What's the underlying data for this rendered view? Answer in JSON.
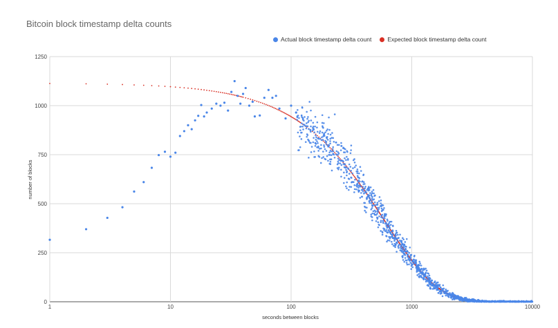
{
  "chart_data": {
    "type": "scatter",
    "title": "Bitcoin block timestamp delta counts",
    "xlabel": "seconds between blocks",
    "ylabel": "number of blocks",
    "x_scale": "log",
    "xlim": [
      1,
      10000
    ],
    "ylim": [
      0,
      1250
    ],
    "x_ticks": [
      "1",
      "10",
      "100",
      "1000",
      "10000"
    ],
    "y_ticks": [
      "0",
      "250",
      "500",
      "750",
      "1000",
      "1250"
    ],
    "grid": true,
    "legend_position": "top",
    "series": [
      {
        "name": "Actual block timestamp delta count",
        "color": "#4a86e8",
        "points": [
          [
            1,
            316
          ],
          [
            2,
            370
          ],
          [
            3,
            428
          ],
          [
            4,
            482
          ],
          [
            5,
            562
          ],
          [
            6,
            610
          ],
          [
            7,
            683
          ],
          [
            8,
            748
          ],
          [
            9,
            765
          ],
          [
            10,
            740
          ],
          [
            11,
            760
          ],
          [
            12,
            845
          ],
          [
            13,
            870
          ],
          [
            14,
            900
          ],
          [
            15,
            880
          ],
          [
            16,
            925
          ],
          [
            17,
            948
          ],
          [
            18,
            1003
          ],
          [
            19,
            945
          ],
          [
            20,
            965
          ],
          [
            22,
            985
          ],
          [
            24,
            1010
          ],
          [
            26,
            1000
          ],
          [
            28,
            1015
          ],
          [
            30,
            975
          ],
          [
            32,
            1070
          ],
          [
            34,
            1125
          ],
          [
            36,
            1050
          ],
          [
            38,
            1010
          ],
          [
            40,
            1060
          ],
          [
            42,
            1090
          ],
          [
            45,
            1000
          ],
          [
            48,
            1020
          ],
          [
            50,
            945
          ],
          [
            55,
            950
          ],
          [
            60,
            1040
          ],
          [
            65,
            1080
          ],
          [
            70,
            1040
          ],
          [
            75,
            1050
          ],
          [
            80,
            985
          ],
          [
            90,
            935
          ],
          [
            100,
            1000
          ],
          [
            110,
            965
          ]
        ],
        "model": {
          "N": 1115,
          "tau": 600,
          "count": 1400,
          "x_max": 10000,
          "noise": 0.05,
          "seed": 7
        }
      },
      {
        "name": "Expected block timestamp delta count",
        "color": "#d93025",
        "model": {
          "N": 1115,
          "tau": 600,
          "x_max": 10000
        }
      }
    ]
  }
}
